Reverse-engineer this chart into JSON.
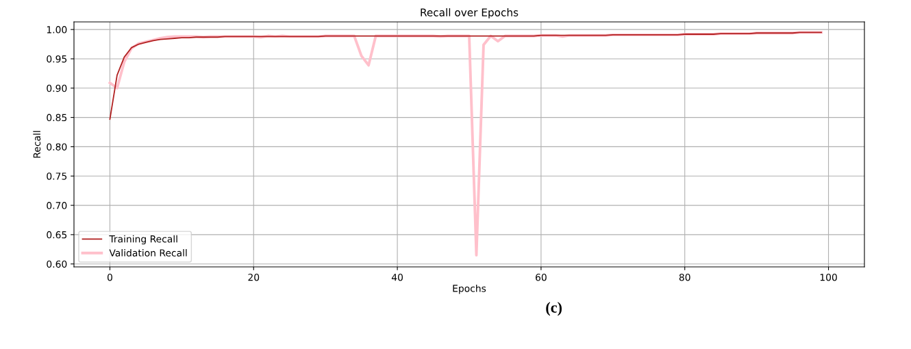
{
  "chart_data": {
    "type": "line",
    "title": "Recall over Epochs",
    "xlabel": "Epochs",
    "ylabel": "Recall",
    "x": [
      0,
      1,
      2,
      3,
      4,
      5,
      6,
      7,
      8,
      9,
      10,
      11,
      12,
      13,
      14,
      15,
      16,
      17,
      18,
      19,
      20,
      21,
      22,
      23,
      24,
      25,
      26,
      27,
      28,
      29,
      30,
      31,
      32,
      33,
      34,
      35,
      36,
      37,
      38,
      39,
      40,
      41,
      42,
      43,
      44,
      45,
      46,
      47,
      48,
      49,
      50,
      51,
      52,
      53,
      54,
      55,
      56,
      57,
      58,
      59,
      60,
      61,
      62,
      63,
      64,
      65,
      66,
      67,
      68,
      69,
      70,
      71,
      72,
      73,
      74,
      75,
      76,
      77,
      78,
      79,
      80,
      81,
      82,
      83,
      84,
      85,
      86,
      87,
      88,
      89,
      90,
      91,
      92,
      93,
      94,
      95,
      96,
      97,
      98,
      99
    ],
    "series": [
      {
        "name": "Training Recall",
        "color": "#b22222",
        "values": [
          0.847,
          0.922,
          0.953,
          0.969,
          0.975,
          0.978,
          0.981,
          0.983,
          0.984,
          0.985,
          0.986,
          0.986,
          0.987,
          0.987,
          0.987,
          0.987,
          0.988,
          0.988,
          0.988,
          0.988,
          0.988,
          0.988,
          0.988,
          0.988,
          0.988,
          0.988,
          0.988,
          0.988,
          0.988,
          0.988,
          0.989,
          0.989,
          0.989,
          0.989,
          0.989,
          0.989,
          0.989,
          0.989,
          0.989,
          0.989,
          0.989,
          0.989,
          0.989,
          0.989,
          0.989,
          0.989,
          0.989,
          0.989,
          0.989,
          0.989,
          0.989,
          0.989,
          0.989,
          0.989,
          0.989,
          0.989,
          0.989,
          0.989,
          0.989,
          0.989,
          0.99,
          0.99,
          0.99,
          0.99,
          0.99,
          0.99,
          0.99,
          0.99,
          0.99,
          0.99,
          0.991,
          0.991,
          0.991,
          0.991,
          0.991,
          0.991,
          0.991,
          0.991,
          0.991,
          0.991,
          0.992,
          0.992,
          0.992,
          0.992,
          0.992,
          0.993,
          0.993,
          0.993,
          0.993,
          0.993,
          0.994,
          0.994,
          0.994,
          0.994,
          0.994,
          0.994,
          0.995,
          0.995,
          0.995,
          0.995
        ]
      },
      {
        "name": "Validation Recall",
        "color": "#ffc0cb",
        "values": [
          0.909,
          0.9,
          0.945,
          0.968,
          0.976,
          0.979,
          0.982,
          0.985,
          0.987,
          0.988,
          0.988,
          0.988,
          0.988,
          0.987,
          0.988,
          0.988,
          0.988,
          0.988,
          0.988,
          0.988,
          0.988,
          0.987,
          0.989,
          0.988,
          0.989,
          0.988,
          0.988,
          0.988,
          0.988,
          0.988,
          0.989,
          0.989,
          0.989,
          0.989,
          0.989,
          0.955,
          0.939,
          0.989,
          0.989,
          0.989,
          0.989,
          0.989,
          0.989,
          0.989,
          0.989,
          0.989,
          0.988,
          0.989,
          0.989,
          0.989,
          0.989,
          0.615,
          0.974,
          0.989,
          0.98,
          0.989,
          0.989,
          0.989,
          0.989,
          0.989,
          0.99,
          0.99,
          0.99,
          0.988,
          0.99,
          0.99,
          0.99,
          0.99,
          0.99,
          0.99,
          0.991,
          0.991,
          0.991,
          0.991,
          0.991,
          0.991,
          0.991,
          0.991,
          0.991,
          0.991,
          0.992,
          0.992,
          0.992,
          0.992,
          0.992,
          0.993,
          0.993,
          0.993,
          0.993,
          0.993,
          0.994,
          0.994,
          0.994,
          0.994,
          0.994,
          0.994,
          0.995,
          0.995,
          0.995,
          0.995
        ]
      }
    ],
    "xlim": [
      -5,
      105
    ],
    "xticks": [
      0,
      20,
      40,
      60,
      80,
      100
    ],
    "ylim": [
      0.595,
      1.013
    ],
    "yticks": [
      {
        "value": 0.6,
        "label": "0.60"
      },
      {
        "value": 0.65,
        "label": "0.65"
      },
      {
        "value": 0.7,
        "label": "0.70"
      },
      {
        "value": 0.75,
        "label": "0.75"
      },
      {
        "value": 0.8,
        "label": "0.80"
      },
      {
        "value": 0.85,
        "label": "0.85"
      },
      {
        "value": 0.9,
        "label": "0.90"
      },
      {
        "value": 0.95,
        "label": "0.95"
      },
      {
        "value": 1.0,
        "label": "1.00"
      }
    ],
    "grid": true,
    "legend": "bottom left",
    "marker": "none",
    "line_style": "solid",
    "annotations": [
      "(c)"
    ]
  }
}
